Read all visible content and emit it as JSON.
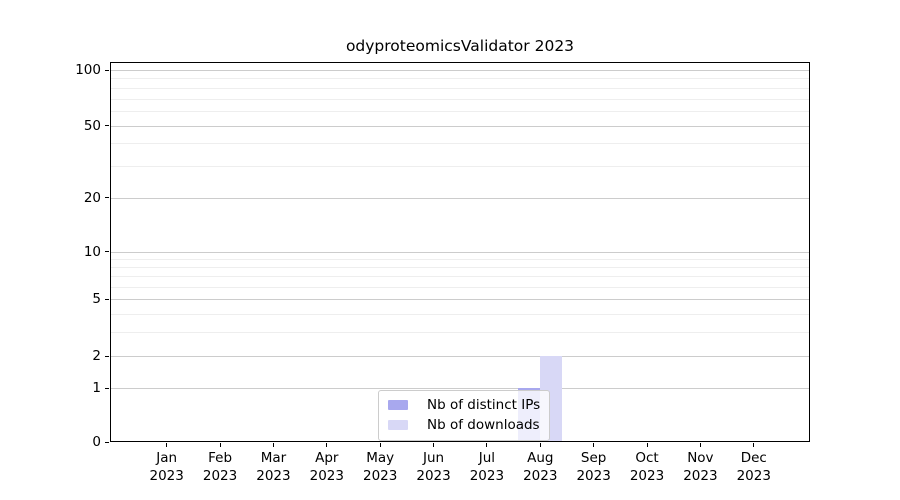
{
  "chart_data": {
    "type": "bar",
    "title": "odyproteomicsValidator 2023",
    "categories": [
      "Jan 2023",
      "Feb 2023",
      "Mar 2023",
      "Apr 2023",
      "May 2023",
      "Jun 2023",
      "Jul 2023",
      "Aug 2023",
      "Sep 2023",
      "Oct 2023",
      "Nov 2023",
      "Dec 2023"
    ],
    "series": [
      {
        "name": "Nb of distinct IPs",
        "color": "#a8a8ee",
        "values": [
          0,
          0,
          0,
          0,
          0,
          0,
          0,
          1,
          0,
          0,
          0,
          0
        ]
      },
      {
        "name": "Nb of downloads",
        "color": "#d8d8f6",
        "values": [
          0,
          0,
          0,
          0,
          0,
          0,
          0,
          2,
          0,
          0,
          0,
          0
        ]
      }
    ],
    "y_axis": {
      "scale": "log1p",
      "ticks": [
        0,
        1,
        2,
        5,
        10,
        20,
        50,
        100
      ],
      "minor_ticks": [
        3,
        4,
        6,
        7,
        8,
        9,
        30,
        40,
        60,
        70,
        80,
        90
      ],
      "range": [
        0,
        110
      ]
    },
    "x_axis": {
      "tick_count": 12
    },
    "grid": {
      "major_color": "#cccccc",
      "minor_color": "#eeeeee"
    },
    "legend": {
      "position": "lower center",
      "frame_alpha": 0.8
    }
  }
}
